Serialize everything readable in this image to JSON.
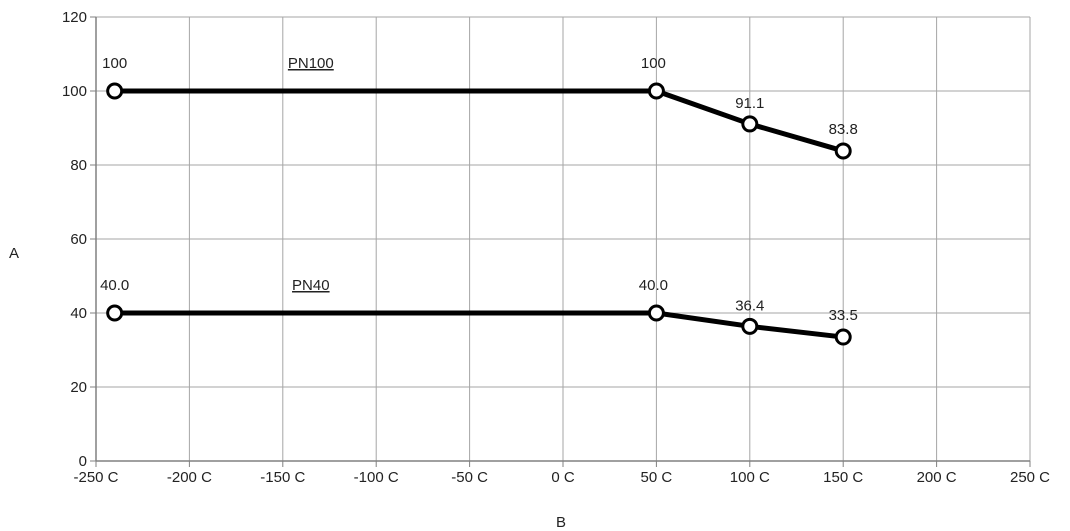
{
  "chart_data": {
    "type": "line",
    "xlabel": "B",
    "ylabel": "A",
    "xlim": [
      -250,
      250
    ],
    "ylim": [
      0,
      120
    ],
    "x_ticks": [
      -250,
      -200,
      -150,
      -100,
      -50,
      0,
      50,
      100,
      150,
      200,
      250
    ],
    "x_tick_labels": [
      "-250 C",
      "-200 C",
      "-150 C",
      "-100 C",
      "-50 C",
      "0 C",
      "50 C",
      "100 C",
      "150 C",
      "200 C",
      "250 C"
    ],
    "y_ticks": [
      0,
      20,
      40,
      60,
      80,
      100,
      120
    ],
    "y_tick_labels": [
      "0",
      "20",
      "40",
      "60",
      "80",
      "100",
      "120"
    ],
    "grid": true,
    "series": [
      {
        "name": "PN100",
        "x": [
          -240,
          50,
          100,
          150
        ],
        "y": [
          100,
          100,
          91.1,
          83.8
        ],
        "point_labels": [
          "100",
          "100",
          "91.1",
          "83.8"
        ]
      },
      {
        "name": "PN40",
        "x": [
          -240,
          50,
          100,
          150
        ],
        "y": [
          40.0,
          40.0,
          36.4,
          33.5
        ],
        "point_labels": [
          "40.0",
          "40.0",
          "36.4",
          "33.5"
        ]
      }
    ]
  }
}
